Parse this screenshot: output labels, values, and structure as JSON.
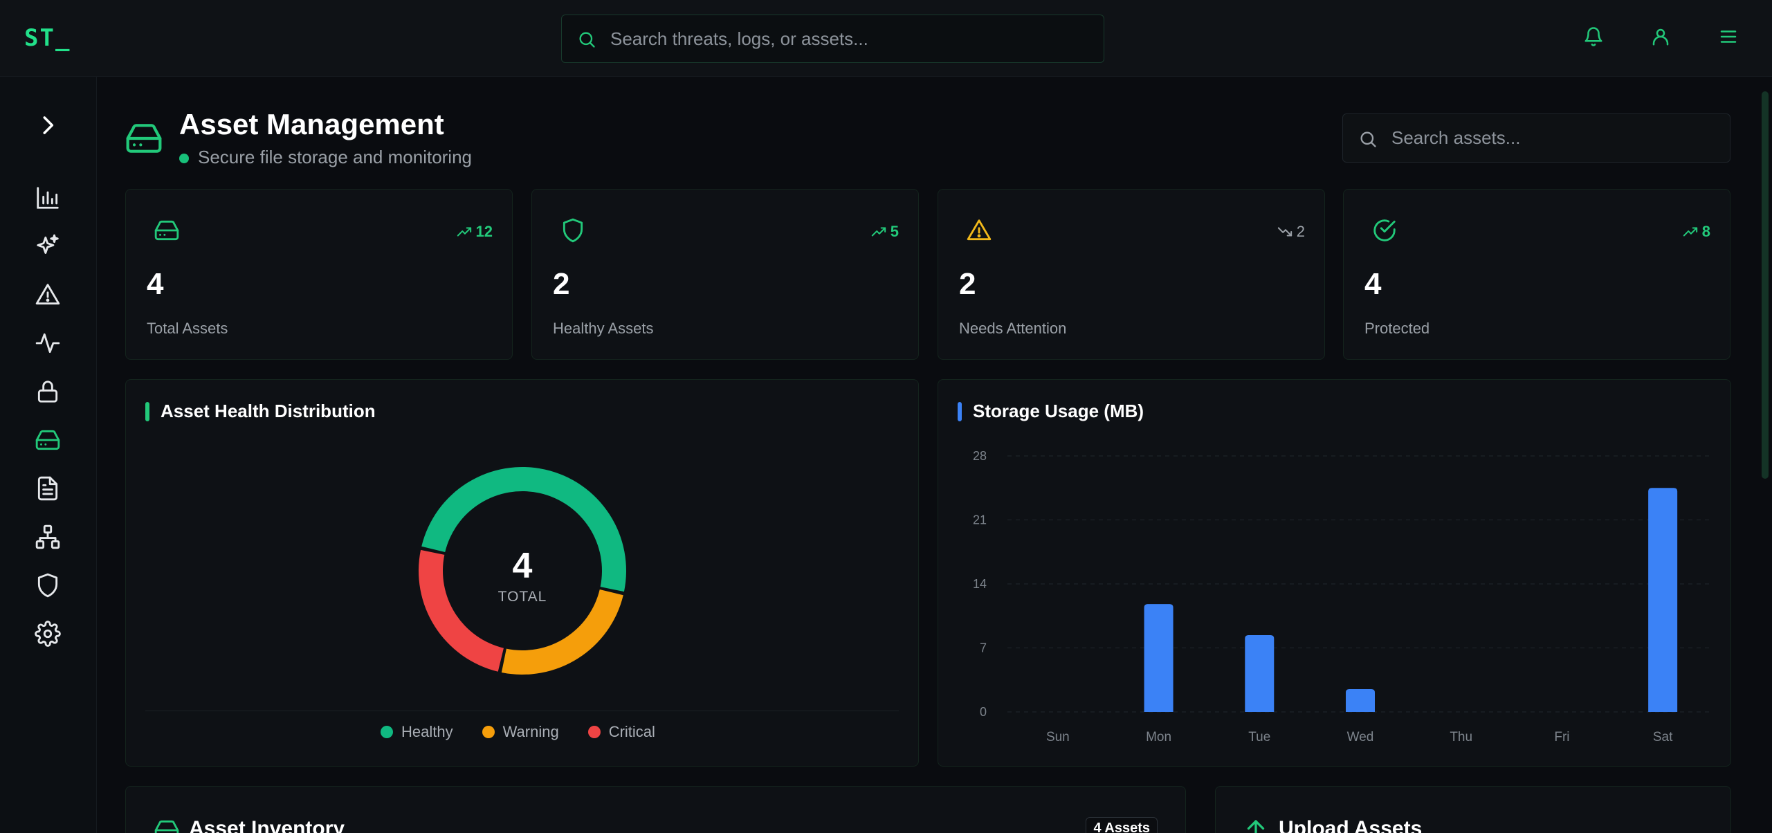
{
  "app": {
    "logo": "ST_"
  },
  "topbar": {
    "search_placeholder": "Search threats, logs, or assets..."
  },
  "sidebar": {
    "items": [
      {
        "name": "expand",
        "icon": "chevron-right-icon"
      },
      {
        "name": "analytics",
        "icon": "bar-chart-icon"
      },
      {
        "name": "ai",
        "icon": "sparkles-icon"
      },
      {
        "name": "alerts",
        "icon": "warning-icon"
      },
      {
        "name": "activity",
        "icon": "activity-icon"
      },
      {
        "name": "security",
        "icon": "lock-icon"
      },
      {
        "name": "assets",
        "icon": "hard-drive-icon",
        "active": true
      },
      {
        "name": "documents",
        "icon": "file-text-icon"
      },
      {
        "name": "network",
        "icon": "network-icon"
      },
      {
        "name": "protection",
        "icon": "shield-icon"
      },
      {
        "name": "settings",
        "icon": "gear-icon"
      }
    ]
  },
  "header": {
    "title": "Asset Management",
    "subtitle": "Secure file storage and monitoring",
    "search_placeholder": "Search assets..."
  },
  "stats": [
    {
      "label": "Total Assets",
      "value": "4",
      "trend": "12",
      "trend_dir": "up",
      "icon": "hard-drive-icon",
      "color": "#22c97a"
    },
    {
      "label": "Healthy Assets",
      "value": "2",
      "trend": "5",
      "trend_dir": "up",
      "icon": "shield-icon",
      "color": "#22c97a"
    },
    {
      "label": "Needs Attention",
      "value": "2",
      "trend": "2",
      "trend_dir": "down",
      "icon": "warning-icon",
      "color": "#f2b91a"
    },
    {
      "label": "Protected",
      "value": "4",
      "trend": "8",
      "trend_dir": "up",
      "icon": "check-circle-icon",
      "color": "#22c97a"
    }
  ],
  "health_chart": {
    "title": "Asset Health Distribution",
    "center_value": "4",
    "center_label": "TOTAL",
    "legend": [
      "Healthy",
      "Warning",
      "Critical"
    ]
  },
  "storage_chart": {
    "title": "Storage Usage (MB)"
  },
  "chart_data": [
    {
      "type": "pie",
      "title": "Asset Health Distribution",
      "categories": [
        "Healthy",
        "Warning",
        "Critical"
      ],
      "values": [
        2,
        1,
        1
      ],
      "colors": [
        "#10b981",
        "#f59e0b",
        "#ef4444"
      ],
      "legend": "bottom"
    },
    {
      "type": "bar",
      "title": "Storage Usage (MB)",
      "categories": [
        "Sun",
        "Mon",
        "Tue",
        "Wed",
        "Thu",
        "Fri",
        "Sat"
      ],
      "values": [
        0,
        11.8,
        8.4,
        2.5,
        0,
        0,
        24.5
      ],
      "yticks": [
        "0",
        "7",
        "14",
        "21",
        "28"
      ],
      "ylim": [
        0,
        28
      ],
      "grid": true,
      "color": "#3b82f6"
    }
  ],
  "inventory": {
    "title": "Asset Inventory",
    "badge": "4 Assets"
  },
  "upload": {
    "title": "Upload Assets"
  }
}
